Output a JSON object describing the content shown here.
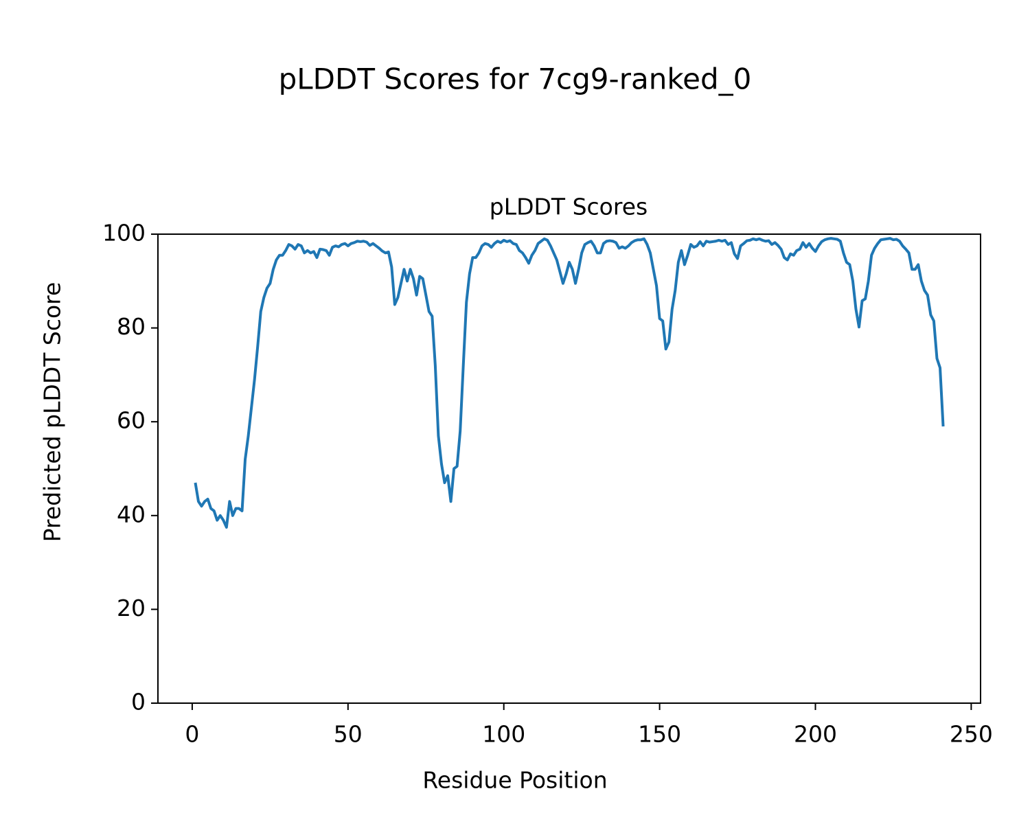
{
  "chart_data": {
    "type": "line",
    "suptitle": "pLDDT Scores for 7cg9-ranked_0",
    "title": "pLDDT Scores",
    "xlabel": "Residue Position",
    "ylabel": "Predicted pLDDT Score",
    "xlim": [
      -11,
      253
    ],
    "ylim": [
      0,
      100
    ],
    "xticks": [
      0,
      50,
      100,
      150,
      200,
      250
    ],
    "yticks": [
      0,
      20,
      40,
      60,
      80,
      100
    ],
    "x": [
      1,
      2,
      3,
      4,
      5,
      6,
      7,
      8,
      9,
      10,
      11,
      12,
      13,
      14,
      15,
      16,
      17,
      18,
      19,
      20,
      21,
      22,
      23,
      24,
      25,
      26,
      27,
      28,
      29,
      30,
      31,
      32,
      33,
      34,
      35,
      36,
      37,
      38,
      39,
      40,
      41,
      42,
      43,
      44,
      45,
      46,
      47,
      48,
      49,
      50,
      51,
      52,
      53,
      54,
      55,
      56,
      57,
      58,
      59,
      60,
      61,
      62,
      63,
      64,
      65,
      66,
      67,
      68,
      69,
      70,
      71,
      72,
      73,
      74,
      75,
      76,
      77,
      78,
      79,
      80,
      81,
      82,
      83,
      84,
      85,
      86,
      87,
      88,
      89,
      90,
      91,
      92,
      93,
      94,
      95,
      96,
      97,
      98,
      99,
      100,
      101,
      102,
      103,
      104,
      105,
      106,
      107,
      108,
      109,
      110,
      111,
      112,
      113,
      114,
      115,
      116,
      117,
      118,
      119,
      120,
      121,
      122,
      123,
      124,
      125,
      126,
      127,
      128,
      129,
      130,
      131,
      132,
      133,
      134,
      135,
      136,
      137,
      138,
      139,
      140,
      141,
      142,
      143,
      144,
      145,
      146,
      147,
      148,
      149,
      150,
      151,
      152,
      153,
      154,
      155,
      156,
      157,
      158,
      159,
      160,
      161,
      162,
      163,
      164,
      165,
      166,
      167,
      168,
      169,
      170,
      171,
      172,
      173,
      174,
      175,
      176,
      177,
      178,
      179,
      180,
      181,
      182,
      183,
      184,
      185,
      186,
      187,
      188,
      189,
      190,
      191,
      192,
      193,
      194,
      195,
      196,
      197,
      198,
      199,
      200,
      201,
      202,
      203,
      204,
      205,
      206,
      207,
      208,
      209,
      210,
      211,
      212,
      213,
      214,
      215,
      216,
      217,
      218,
      219,
      220,
      221,
      222,
      223,
      224,
      225,
      226,
      227,
      228,
      229,
      230,
      231,
      232,
      233,
      234,
      235,
      236,
      237,
      238,
      239,
      240,
      241
    ],
    "series": [
      {
        "color": "#1f77b4",
        "values": [
          47,
          43,
          42,
          43,
          43.5,
          41.5,
          41,
          39,
          40,
          39,
          37.5,
          43,
          40,
          41.5,
          41.5,
          41,
          52,
          57,
          63,
          69,
          76,
          83.5,
          86.5,
          88.5,
          89.5,
          92.5,
          94.5,
          95.5,
          95.5,
          96.5,
          97.8,
          97.5,
          96.8,
          97.8,
          97.5,
          96,
          96.5,
          96,
          96.3,
          95,
          96.8,
          96.7,
          96.5,
          95.5,
          97.2,
          97.5,
          97.3,
          97.8,
          98,
          97.5,
          98,
          98.2,
          98.5,
          98.4,
          98.5,
          98.3,
          97.6,
          98,
          97.5,
          97,
          96.4,
          96,
          96.2,
          93,
          85,
          86.5,
          89.5,
          92.5,
          90,
          92.5,
          90.5,
          87,
          91,
          90.5,
          87,
          83.5,
          82.5,
          72,
          57,
          51,
          47,
          48.5,
          43,
          50,
          50.5,
          58,
          72,
          85.5,
          91.5,
          95,
          95,
          96,
          97.5,
          98,
          97.8,
          97.2,
          98,
          98.5,
          98.2,
          98.7,
          98.4,
          98.6,
          98,
          97.8,
          96.5,
          96,
          95,
          93.8,
          95.5,
          96.5,
          98,
          98.5,
          99,
          98.7,
          97.5,
          96,
          94.5,
          92,
          89.5,
          91.5,
          94,
          92.5,
          89.5,
          92.5,
          96,
          97.8,
          98.2,
          98.5,
          97.5,
          96,
          96,
          98,
          98.5,
          98.6,
          98.5,
          98.2,
          97,
          97.3,
          97,
          97.5,
          98.2,
          98.6,
          98.8,
          98.8,
          99,
          97.8,
          96,
          92.5,
          89,
          82,
          81.5,
          75.5,
          77,
          84,
          88,
          94,
          96.5,
          93.5,
          95.5,
          97.8,
          97.2,
          97.5,
          98.4,
          97.5,
          98.5,
          98.3,
          98.4,
          98.5,
          98.7,
          98.5,
          98.7,
          97.8,
          98.2,
          95.8,
          94.8,
          97.5,
          98,
          98.6,
          98.7,
          99,
          98.8,
          99,
          98.7,
          98.5,
          98.6,
          97.8,
          98.2,
          97.6,
          96.8,
          95,
          94.5,
          95.8,
          95.5,
          96.5,
          96.8,
          98.2,
          97.2,
          98,
          97,
          96.3,
          97.5,
          98.4,
          98.8,
          99,
          99.1,
          99,
          98.9,
          98.5,
          96,
          94,
          93.5,
          90,
          84,
          80.2,
          85.8,
          86.2,
          90,
          95.5,
          97,
          98,
          98.8,
          98.9,
          99,
          99.1,
          98.8,
          98.9,
          98.5,
          97.5,
          96.8,
          96,
          92.5,
          92.5,
          93.5,
          90,
          88,
          87,
          82.8,
          81.5,
          73.5,
          71.5,
          59
        ]
      }
    ]
  }
}
